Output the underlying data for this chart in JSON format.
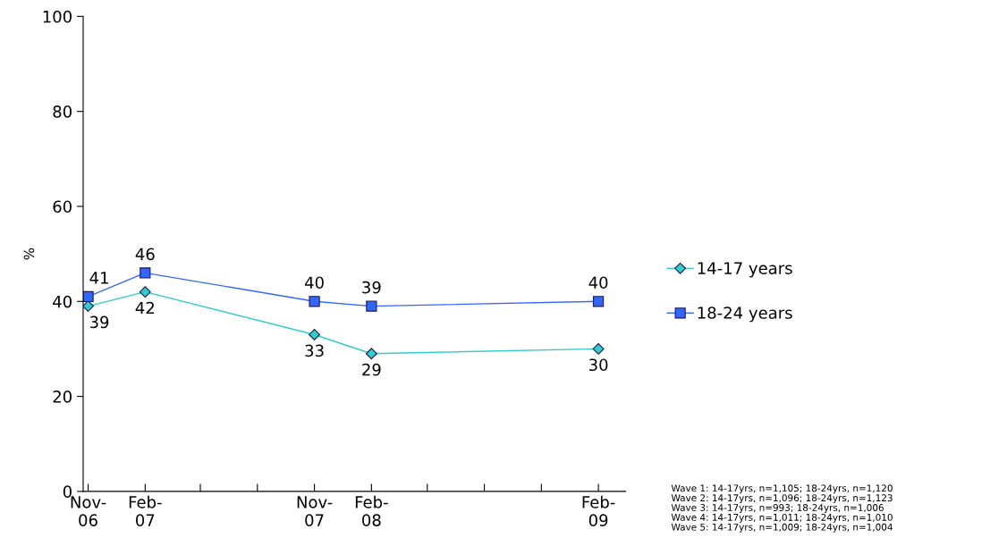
{
  "chart_data": {
    "type": "line",
    "ylabel": "%",
    "x": [
      "2006-11",
      "2007-02",
      "2007-11",
      "2008-02",
      "2009-02"
    ],
    "series": [
      {
        "name": "14-17 years",
        "color": "#33cccc",
        "marker": "diamond",
        "values": [
          39,
          42,
          33,
          29,
          30
        ]
      },
      {
        "name": "18-24 years",
        "color": "#3366ff",
        "marker": "square",
        "values": [
          41,
          46,
          40,
          39,
          40
        ]
      }
    ],
    "xlim": [
      "2006-10-24",
      "2009-03-17"
    ],
    "xticks": [
      {
        "value": "2006-11",
        "label": "Nov-\n06"
      },
      {
        "value": "2007-02",
        "label": "Feb-\n07"
      },
      {
        "value": "2007-05",
        "label": null
      },
      {
        "value": "2007-08",
        "label": null
      },
      {
        "value": "2007-11",
        "label": "Nov-\n07"
      },
      {
        "value": "2008-02",
        "label": "Feb-\n08"
      },
      {
        "value": "2008-05",
        "label": null
      },
      {
        "value": "2008-08",
        "label": null
      },
      {
        "value": "2008-11",
        "label": null
      },
      {
        "value": "2009-02",
        "label": "Feb-\n09"
      }
    ],
    "ylim": [
      0,
      100
    ],
    "yticks": [
      0,
      20,
      40,
      60,
      80,
      100
    ],
    "grid": false,
    "legend": "right",
    "data_labels": true,
    "annotations": [
      "Wave 1: 14-17yrs, n=1,105; 18-24yrs, n=1,120\nWave 2: 14-17yrs, n=1,096; 18-24yrs, n=1,123\nWave 3: 14-17yrs, n=993; 18-24yrs, n=1,006\nWave 4: 14-17yrs, n=1,011; 18-24yrs, n=1,010\nWave 5: 14-17yrs, n=1,009; 18-24yrs, n=1,004"
    ]
  }
}
